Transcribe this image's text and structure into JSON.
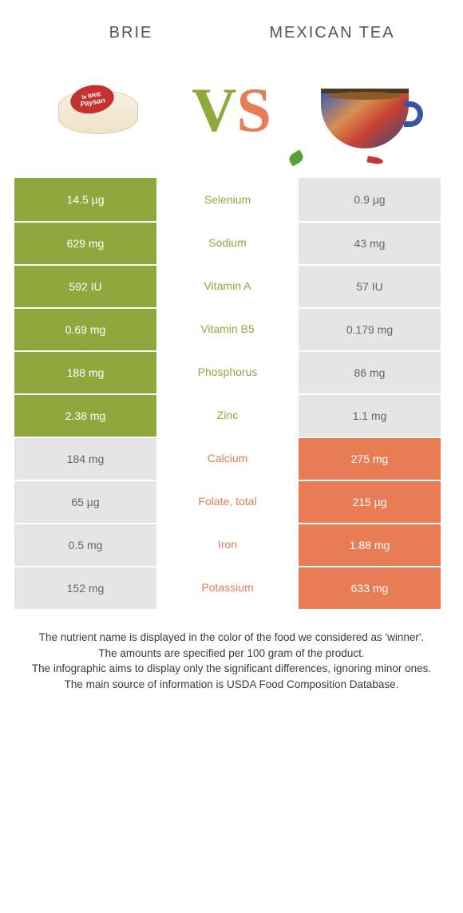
{
  "header": {
    "left_title": "BRIE",
    "right_title": "MEXICAN TEA",
    "brie_label_top": "le BRIE",
    "brie_label_bottom": "Paysan",
    "vs_v": "V",
    "vs_s": "S"
  },
  "colors": {
    "green": "#8fa83e",
    "orange": "#e87c54",
    "green_dark": "#80982f",
    "orange_dark": "#df6a3f",
    "grey_bg": "#e5e5e5",
    "row_text": "#ffffff",
    "footnote": "#3a3a3a"
  },
  "rows": [
    {
      "label": "Selenium",
      "left": "14.5 µg",
      "right": "0.9 µg",
      "winner": "left"
    },
    {
      "label": "Sodium",
      "left": "629 mg",
      "right": "43 mg",
      "winner": "left"
    },
    {
      "label": "Vitamin A",
      "left": "592 IU",
      "right": "57 IU",
      "winner": "left"
    },
    {
      "label": "Vitamin B5",
      "left": "0.69 mg",
      "right": "0.179 mg",
      "winner": "left"
    },
    {
      "label": "Phosphorus",
      "left": "188 mg",
      "right": "86 mg",
      "winner": "left"
    },
    {
      "label": "Zinc",
      "left": "2.38 mg",
      "right": "1.1 mg",
      "winner": "left"
    },
    {
      "label": "Calcium",
      "left": "184 mg",
      "right": "275 mg",
      "winner": "right"
    },
    {
      "label": "Folate, total",
      "left": "65 µg",
      "right": "215 µg",
      "winner": "right"
    },
    {
      "label": "Iron",
      "left": "0.5 mg",
      "right": "1.88 mg",
      "winner": "right"
    },
    {
      "label": "Potassium",
      "left": "152 mg",
      "right": "633 mg",
      "winner": "right"
    }
  ],
  "footnotes": [
    "The nutrient name is displayed in the color of the food we considered as 'winner'.",
    "The amounts are specified per 100 gram of the product.",
    "The infographic aims to display only the significant differences, ignoring minor ones.",
    "The main source of information is USDA Food Composition Database."
  ]
}
